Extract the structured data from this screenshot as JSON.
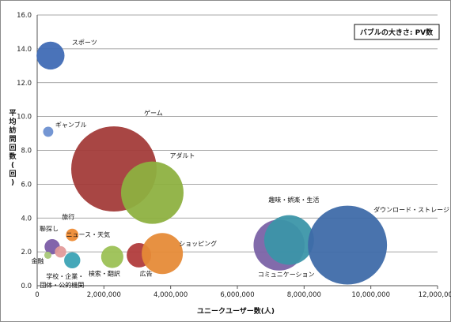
{
  "chart_data": {
    "type": "scatter",
    "title": "",
    "note": "バブルの大きさ: PV数",
    "xlabel": "ユニークユーザー数(人)",
    "ylabel": "平均訪問回数(回)",
    "xlim": [
      0,
      12000000
    ],
    "ylim": [
      0,
      16
    ],
    "x_ticks": [
      "0",
      "2,000,000",
      "4,000,000",
      "6,000,000",
      "8,000,000",
      "10,000,000",
      "12,000,000"
    ],
    "y_ticks": [
      "0.0",
      "2.0",
      "4.0",
      "6.0",
      "8.0",
      "10.0",
      "12.0",
      "14.0",
      "16.0"
    ],
    "grid": true,
    "points": [
      {
        "label": "スポーツ",
        "x": 400000,
        "y": 13.6,
        "size": 3.0,
        "color": "#3f6ab5"
      },
      {
        "label": "ギャンブル",
        "x": 330000,
        "y": 9.1,
        "size": 0.4,
        "color": "#6b8fd0"
      },
      {
        "label": "ゲーム",
        "x": 2300000,
        "y": 6.9,
        "size": 28.0,
        "color": "#a33a38"
      },
      {
        "label": "アダルト",
        "x": 3450000,
        "y": 5.5,
        "size": 15.0,
        "color": "#8db040"
      },
      {
        "label": "旅行",
        "x": 1050000,
        "y": 3.0,
        "size": 0.6,
        "color": "#ee8a32"
      },
      {
        "label": "聯探し",
        "x": 450000,
        "y": 2.3,
        "size": 0.9,
        "color": "#7a5aa6"
      },
      {
        "label": "ニュース・天気",
        "x": 700000,
        "y": 2.0,
        "size": 0.5,
        "color": "#e29a9a"
      },
      {
        "label": "金融",
        "x": 320000,
        "y": 1.8,
        "size": 0.2,
        "color": "#a8c878"
      },
      {
        "label": "学校・企業・団体・公的機関",
        "x": 1050000,
        "y": 1.5,
        "size": 1.0,
        "color": "#3aa3b5"
      },
      {
        "label": "検索・翻訳",
        "x": 2250000,
        "y": 1.7,
        "size": 1.9,
        "color": "#9bc054"
      },
      {
        "label": "広告",
        "x": 3050000,
        "y": 1.8,
        "size": 2.3,
        "color": "#b03a3a"
      },
      {
        "label": "ショッピング",
        "x": 3750000,
        "y": 1.9,
        "size": 6.5,
        "color": "#e68a36"
      },
      {
        "label": "コミュニケーション",
        "x": 7250000,
        "y": 2.4,
        "size": 10.0,
        "color": "#7a62a6"
      },
      {
        "label": "趣味・娯楽・生活",
        "x": 7550000,
        "y": 2.7,
        "size": 9.5,
        "color": "#3a95a8"
      },
      {
        "label": "ダウンロード・ストレージ",
        "x": 9300000,
        "y": 2.4,
        "size": 24.0,
        "color": "#3e6aa8"
      }
    ]
  }
}
